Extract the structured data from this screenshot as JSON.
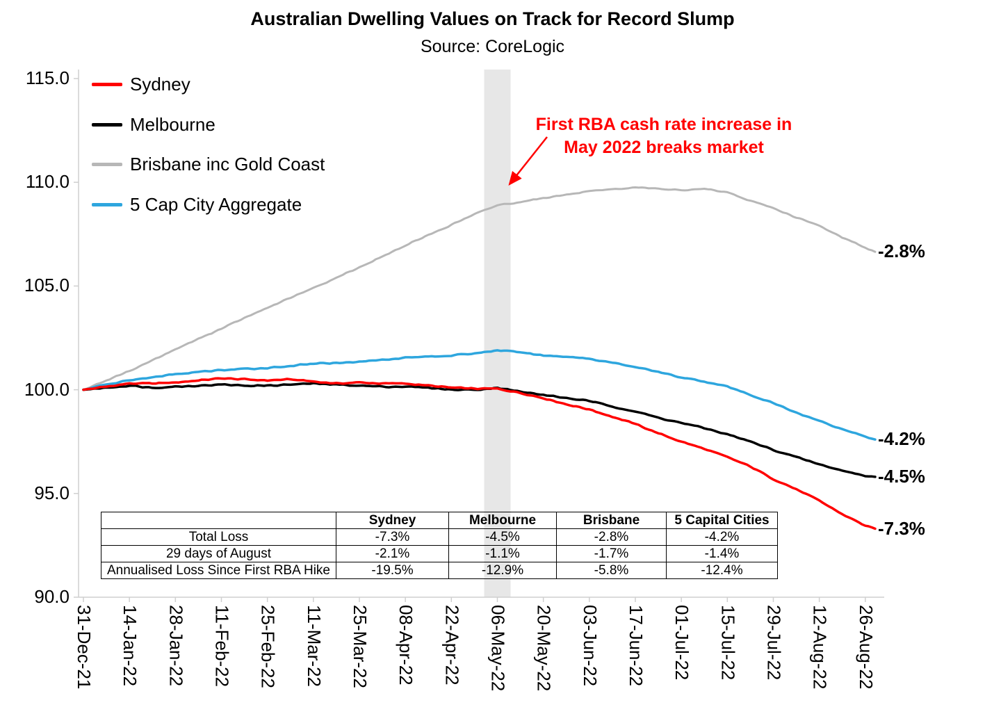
{
  "chart_data": {
    "type": "line",
    "title": "Australian Dwelling Values on Track for Record Slump",
    "subtitle": "Source: CoreLogic",
    "xlabel": "",
    "ylabel": "",
    "ylim": [
      90,
      115
    ],
    "ytick_labels": [
      "115.0",
      "110.0",
      "105.0",
      "100.0",
      "95.0",
      "90.0"
    ],
    "ytick_values": [
      115,
      110,
      105,
      100,
      95,
      90
    ],
    "xtick_labels": [
      "31-Dec-21",
      "14-Jan-22",
      "28-Jan-22",
      "11-Feb-22",
      "25-Feb-22",
      "11-Mar-22",
      "25-Mar-22",
      "08-Apr-22",
      "22-Apr-22",
      "06-May-22",
      "20-May-22",
      "03-Jun-22",
      "17-Jun-22",
      "01-Jul-22",
      "15-Jul-22",
      "29-Jul-22",
      "12-Aug-22",
      "26-Aug-22"
    ],
    "xtick_days": [
      0,
      14,
      28,
      42,
      56,
      70,
      84,
      98,
      112,
      126,
      140,
      154,
      168,
      182,
      196,
      210,
      224,
      238
    ],
    "axis_color": "#cfcfcf",
    "band": {
      "day": 126,
      "color": "#e7e7e7"
    },
    "annotation": {
      "lines": [
        "First RBA cash rate increase in",
        "May 2022 breaks market"
      ],
      "color": "#ff0000"
    },
    "series": [
      {
        "name": "Sydney",
        "color": "#ff0000",
        "width": 3.5,
        "points": [
          [
            0,
            100
          ],
          [
            7,
            100.15
          ],
          [
            14,
            100.3
          ],
          [
            21,
            100.3
          ],
          [
            28,
            100.35
          ],
          [
            35,
            100.45
          ],
          [
            42,
            100.55
          ],
          [
            49,
            100.5
          ],
          [
            56,
            100.45
          ],
          [
            63,
            100.5
          ],
          [
            70,
            100.4
          ],
          [
            77,
            100.3
          ],
          [
            84,
            100.35
          ],
          [
            91,
            100.3
          ],
          [
            98,
            100.3
          ],
          [
            105,
            100.2
          ],
          [
            112,
            100.1
          ],
          [
            119,
            100.05
          ],
          [
            126,
            100.05
          ],
          [
            133,
            99.85
          ],
          [
            140,
            99.6
          ],
          [
            147,
            99.3
          ],
          [
            154,
            99.05
          ],
          [
            161,
            98.7
          ],
          [
            168,
            98.35
          ],
          [
            175,
            97.9
          ],
          [
            182,
            97.5
          ],
          [
            189,
            97.15
          ],
          [
            196,
            96.75
          ],
          [
            203,
            96.3
          ],
          [
            210,
            95.7
          ],
          [
            217,
            95.2
          ],
          [
            224,
            94.65
          ],
          [
            231,
            94.0
          ],
          [
            238,
            93.45
          ],
          [
            241,
            93.3
          ]
        ]
      },
      {
        "name": "Melbourne",
        "color": "#000000",
        "width": 3.5,
        "points": [
          [
            0,
            100
          ],
          [
            7,
            100.1
          ],
          [
            14,
            100.2
          ],
          [
            21,
            100.1
          ],
          [
            28,
            100.15
          ],
          [
            35,
            100.2
          ],
          [
            42,
            100.25
          ],
          [
            49,
            100.2
          ],
          [
            56,
            100.2
          ],
          [
            63,
            100.25
          ],
          [
            70,
            100.3
          ],
          [
            77,
            100.25
          ],
          [
            84,
            100.2
          ],
          [
            91,
            100.15
          ],
          [
            98,
            100.15
          ],
          [
            105,
            100.1
          ],
          [
            112,
            100.0
          ],
          [
            119,
            100.0
          ],
          [
            126,
            100.1
          ],
          [
            133,
            99.9
          ],
          [
            140,
            99.75
          ],
          [
            147,
            99.6
          ],
          [
            154,
            99.45
          ],
          [
            161,
            99.2
          ],
          [
            168,
            98.95
          ],
          [
            175,
            98.65
          ],
          [
            182,
            98.4
          ],
          [
            189,
            98.15
          ],
          [
            196,
            97.85
          ],
          [
            203,
            97.5
          ],
          [
            210,
            97.1
          ],
          [
            217,
            96.75
          ],
          [
            224,
            96.4
          ],
          [
            231,
            96.1
          ],
          [
            238,
            95.85
          ],
          [
            241,
            95.8
          ]
        ]
      },
      {
        "name": "Brisbane inc Gold Coast",
        "color": "#b7b7b7",
        "width": 3,
        "points": [
          [
            0,
            100
          ],
          [
            14,
            100.9
          ],
          [
            28,
            101.95
          ],
          [
            42,
            102.95
          ],
          [
            56,
            103.95
          ],
          [
            70,
            104.9
          ],
          [
            84,
            105.9
          ],
          [
            98,
            106.95
          ],
          [
            112,
            107.95
          ],
          [
            119,
            108.45
          ],
          [
            126,
            108.9
          ],
          [
            133,
            109.05
          ],
          [
            140,
            109.25
          ],
          [
            147,
            109.4
          ],
          [
            154,
            109.55
          ],
          [
            161,
            109.65
          ],
          [
            168,
            109.75
          ],
          [
            175,
            109.7
          ],
          [
            182,
            109.6
          ],
          [
            189,
            109.7
          ],
          [
            196,
            109.5
          ],
          [
            203,
            109.1
          ],
          [
            210,
            108.75
          ],
          [
            217,
            108.3
          ],
          [
            224,
            107.9
          ],
          [
            231,
            107.35
          ],
          [
            238,
            106.85
          ],
          [
            241,
            106.65
          ]
        ]
      },
      {
        "name": "5 Cap City Aggregate",
        "color": "#2ea6de",
        "width": 3.5,
        "points": [
          [
            0,
            100
          ],
          [
            7,
            100.25
          ],
          [
            14,
            100.45
          ],
          [
            21,
            100.6
          ],
          [
            28,
            100.75
          ],
          [
            35,
            100.85
          ],
          [
            42,
            100.95
          ],
          [
            49,
            101.0
          ],
          [
            56,
            101.05
          ],
          [
            63,
            101.15
          ],
          [
            70,
            101.25
          ],
          [
            77,
            101.3
          ],
          [
            84,
            101.35
          ],
          [
            91,
            101.45
          ],
          [
            98,
            101.55
          ],
          [
            105,
            101.6
          ],
          [
            112,
            101.65
          ],
          [
            119,
            101.75
          ],
          [
            126,
            101.9
          ],
          [
            133,
            101.8
          ],
          [
            140,
            101.65
          ],
          [
            147,
            101.6
          ],
          [
            154,
            101.5
          ],
          [
            161,
            101.3
          ],
          [
            168,
            101.1
          ],
          [
            175,
            100.85
          ],
          [
            182,
            100.6
          ],
          [
            189,
            100.4
          ],
          [
            196,
            100.15
          ],
          [
            203,
            99.75
          ],
          [
            210,
            99.35
          ],
          [
            217,
            98.9
          ],
          [
            224,
            98.5
          ],
          [
            231,
            98.1
          ],
          [
            238,
            97.75
          ],
          [
            241,
            97.6
          ]
        ]
      }
    ],
    "end_labels": [
      {
        "text": "-2.8%",
        "value": 106.65,
        "series": "Brisbane inc Gold Coast"
      },
      {
        "text": "-4.2%",
        "value": 97.6,
        "series": "5 Cap City Aggregate"
      },
      {
        "text": "-4.5%",
        "value": 95.8,
        "series": "Melbourne"
      },
      {
        "text": "-7.3%",
        "value": 93.3,
        "series": "Sydney"
      }
    ]
  },
  "table": {
    "headers": [
      "",
      "Sydney",
      "Melbourne",
      "Brisbane",
      "5 Capital Cities"
    ],
    "rows": [
      {
        "label": "Total Loss",
        "values": [
          "-7.3%",
          "-4.5%",
          "-2.8%",
          "-4.2%"
        ]
      },
      {
        "label": "29 days of August",
        "values": [
          "-2.1%",
          "-1.1%",
          "-1.7%",
          "-1.4%"
        ]
      },
      {
        "label": "Annualised Loss Since First RBA Hike",
        "values": [
          "-19.5%",
          "-12.9%",
          "-5.8%",
          "-12.4%"
        ]
      }
    ]
  }
}
